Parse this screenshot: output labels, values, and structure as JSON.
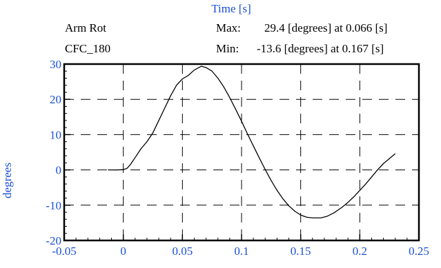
{
  "chart_data": {
    "type": "line",
    "xlabel": "Time [s]",
    "ylabel": "degrees",
    "header": {
      "name": "Arm Rot",
      "filter": "CFC_180",
      "max_label": "Max:",
      "max_text": "29.4 [degrees] at 0.066 [s]",
      "min_label": "Min:",
      "min_text": "-13.6 [degrees] at 0.167 [s]"
    },
    "xlim": [
      -0.05,
      0.25
    ],
    "ylim": [
      -20,
      30
    ],
    "x_ticks": [
      -0.05,
      0,
      0.05,
      0.1,
      0.15,
      0.2,
      0.25
    ],
    "x_tick_labels": [
      "-0.05",
      "0",
      "0.05",
      "0.1",
      "0.15",
      "0.2",
      "0.25"
    ],
    "y_ticks": [
      -20,
      -10,
      0,
      10,
      20,
      30
    ],
    "y_tick_labels": [
      "-20",
      "-10",
      "0",
      "10",
      "20",
      "30"
    ],
    "grid": true,
    "colors": {
      "axis_text": "#1a4fd6",
      "line": "#000000",
      "grid": "#000000"
    },
    "series": [
      {
        "x": [
          -0.013,
          -0.005,
          0.0,
          0.003,
          0.006,
          0.01,
          0.015,
          0.02,
          0.025,
          0.03,
          0.035,
          0.04,
          0.045,
          0.05,
          0.055,
          0.06,
          0.066,
          0.07,
          0.075,
          0.08,
          0.085,
          0.09,
          0.095,
          0.1,
          0.105,
          0.11,
          0.115,
          0.12,
          0.125,
          0.13,
          0.135,
          0.14,
          0.145,
          0.15,
          0.155,
          0.16,
          0.167,
          0.172,
          0.178,
          0.185,
          0.19,
          0.195,
          0.2,
          0.205,
          0.21,
          0.215,
          0.22,
          0.225,
          0.23
        ],
        "y": [
          0.0,
          0.0,
          0.1,
          0.4,
          1.5,
          3.5,
          6.0,
          8.0,
          10.5,
          14.0,
          17.5,
          21.0,
          24.0,
          25.8,
          26.8,
          28.3,
          29.4,
          29.0,
          28.0,
          26.0,
          23.5,
          20.5,
          17.2,
          13.8,
          10.2,
          6.8,
          3.4,
          0.1,
          -3.0,
          -5.8,
          -8.2,
          -10.2,
          -11.7,
          -12.8,
          -13.4,
          -13.6,
          -13.6,
          -13.2,
          -12.2,
          -10.6,
          -9.2,
          -7.6,
          -5.8,
          -4.0,
          -2.0,
          0.0,
          1.8,
          3.2,
          4.6
        ]
      }
    ]
  }
}
